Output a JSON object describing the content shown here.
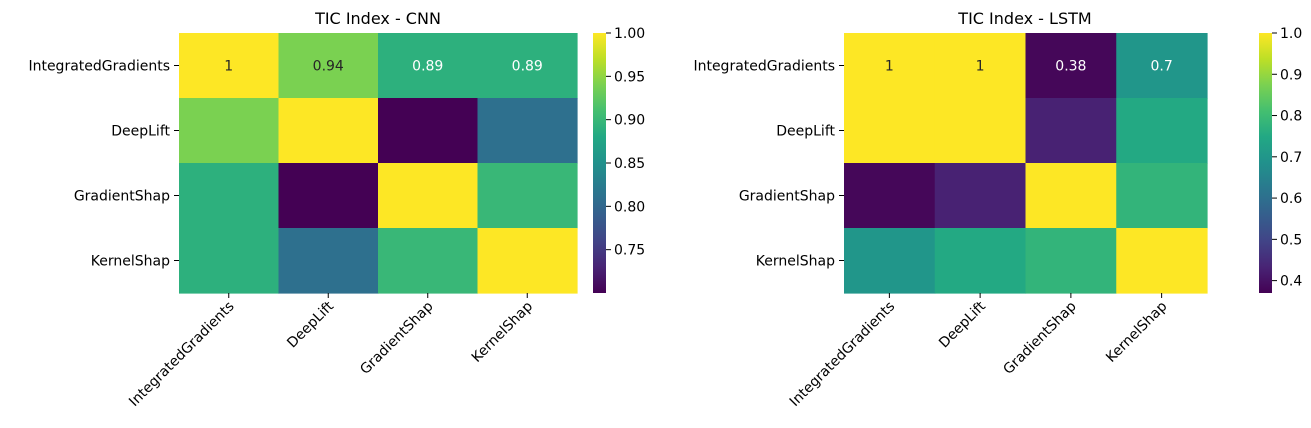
{
  "chart_data": [
    {
      "type": "heatmap",
      "title": "TIC Index - CNN",
      "rows": [
        "IntegratedGradients",
        "DeepLift",
        "GradientShap",
        "KernelShap"
      ],
      "cols": [
        "IntegratedGradients",
        "DeepLift",
        "GradientShap",
        "KernelShap"
      ],
      "values": [
        [
          1.0,
          0.94,
          0.89,
          0.89
        ],
        [
          0.94,
          1.0,
          0.7,
          0.81
        ],
        [
          0.89,
          0.7,
          1.0,
          0.9
        ],
        [
          0.89,
          0.81,
          0.9,
          1.0
        ]
      ],
      "annotations": [
        [
          "1",
          "0.94",
          "0.89",
          "0.89"
        ],
        [
          "",
          "",
          "",
          ""
        ],
        [
          "",
          "",
          "",
          ""
        ],
        [
          "",
          "",
          "",
          ""
        ]
      ],
      "colormap": "viridis",
      "vmin": 0.7,
      "vmax": 1.0,
      "colorbar_ticks": [
        0.75,
        0.8,
        0.85,
        0.9,
        0.95,
        1.0
      ],
      "colorbar_tick_labels": [
        "0.75",
        "0.80",
        "0.85",
        "0.90",
        "0.95",
        "1.00"
      ]
    },
    {
      "type": "heatmap",
      "title": "TIC Index - LSTM",
      "rows": [
        "IntegratedGradients",
        "DeepLift",
        "GradientShap",
        "KernelShap"
      ],
      "cols": [
        "IntegratedGradients",
        "DeepLift",
        "GradientShap",
        "KernelShap"
      ],
      "values": [
        [
          1.0,
          1.0,
          0.38,
          0.7
        ],
        [
          1.0,
          1.0,
          0.43,
          0.75
        ],
        [
          0.38,
          0.43,
          1.0,
          0.78
        ],
        [
          0.7,
          0.75,
          0.78,
          1.0
        ]
      ],
      "annotations": [
        [
          "1",
          "1",
          "0.38",
          "0.7"
        ],
        [
          "",
          "",
          "",
          ""
        ],
        [
          "",
          "",
          "",
          ""
        ],
        [
          "",
          "",
          "",
          ""
        ]
      ],
      "colormap": "viridis",
      "vmin": 0.37,
      "vmax": 1.0,
      "colorbar_ticks": [
        0.4,
        0.5,
        0.6,
        0.7,
        0.8,
        0.9,
        1.0
      ],
      "colorbar_tick_labels": [
        "0.4",
        "0.5",
        "0.6",
        "0.7",
        "0.8",
        "0.9",
        "1.0"
      ]
    }
  ]
}
